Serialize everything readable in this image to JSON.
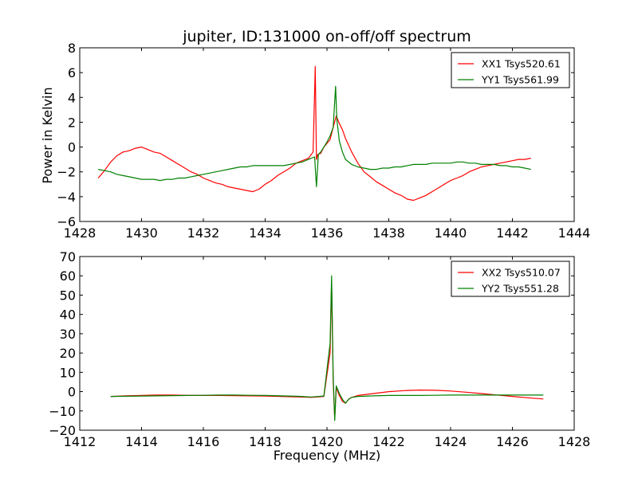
{
  "figure": {
    "title": "jupiter, ID:131000 on-off/off spectrum",
    "ylabel": "Power in Kelvin",
    "xlabel": "Frequency (MHz)"
  },
  "chart_data": [
    {
      "type": "line",
      "title": "jupiter, ID:131000 on-off/off spectrum",
      "xlabel": "",
      "ylabel": "Power in Kelvin",
      "xlim": [
        1428,
        1444
      ],
      "ylim": [
        -6,
        8
      ],
      "xticks": [
        1428,
        1430,
        1432,
        1434,
        1436,
        1438,
        1440,
        1442,
        1444
      ],
      "yticks": [
        -6,
        -4,
        -2,
        0,
        2,
        4,
        6,
        8
      ],
      "grid": false,
      "legend_position": "top-right",
      "series": [
        {
          "name": "XX1 Tsys520.61",
          "color": "#ff0000",
          "x": [
            1428.6,
            1428.8,
            1429.0,
            1429.2,
            1429.4,
            1429.6,
            1429.8,
            1430.0,
            1430.2,
            1430.4,
            1430.6,
            1430.8,
            1431.0,
            1431.2,
            1431.4,
            1431.6,
            1431.8,
            1432.0,
            1432.2,
            1432.4,
            1432.6,
            1432.8,
            1433.0,
            1433.2,
            1433.4,
            1433.6,
            1433.8,
            1434.0,
            1434.2,
            1434.4,
            1434.6,
            1434.8,
            1435.0,
            1435.2,
            1435.4,
            1435.55,
            1435.62,
            1435.66,
            1435.7,
            1435.8,
            1435.9,
            1436.0,
            1436.1,
            1436.2,
            1436.3,
            1436.4,
            1436.5,
            1436.6,
            1436.8,
            1437.0,
            1437.2,
            1437.4,
            1437.6,
            1437.8,
            1438.0,
            1438.2,
            1438.4,
            1438.6,
            1438.8,
            1439.0,
            1439.2,
            1439.4,
            1439.6,
            1439.8,
            1440.0,
            1440.2,
            1440.4,
            1440.6,
            1440.8,
            1441.0,
            1441.2,
            1441.4,
            1441.6,
            1441.8,
            1442.0,
            1442.2,
            1442.4,
            1442.6
          ],
          "y": [
            -2.5,
            -1.9,
            -1.2,
            -0.7,
            -0.4,
            -0.3,
            -0.1,
            0.0,
            -0.2,
            -0.4,
            -0.5,
            -0.8,
            -1.1,
            -1.4,
            -1.7,
            -2.0,
            -2.2,
            -2.5,
            -2.7,
            -2.9,
            -3.0,
            -3.2,
            -3.3,
            -3.4,
            -3.5,
            -3.6,
            -3.4,
            -3.0,
            -2.7,
            -2.3,
            -2.0,
            -1.7,
            -1.3,
            -1.1,
            -0.9,
            -0.4,
            6.5,
            -1.0,
            -0.6,
            -0.5,
            0.0,
            0.3,
            0.6,
            1.6,
            2.5,
            1.9,
            1.4,
            0.7,
            -0.4,
            -1.3,
            -2.0,
            -2.4,
            -2.8,
            -3.1,
            -3.4,
            -3.7,
            -3.9,
            -4.2,
            -4.3,
            -4.1,
            -3.9,
            -3.6,
            -3.3,
            -3.0,
            -2.7,
            -2.5,
            -2.3,
            -2.0,
            -1.8,
            -1.6,
            -1.5,
            -1.4,
            -1.3,
            -1.2,
            -1.1,
            -1.0,
            -1.0,
            -0.9
          ]
        },
        {
          "name": "YY1 Tsys561.99",
          "color": "#008000",
          "x": [
            1428.6,
            1428.8,
            1429.0,
            1429.2,
            1429.4,
            1429.6,
            1429.8,
            1430.0,
            1430.2,
            1430.4,
            1430.6,
            1430.8,
            1431.0,
            1431.2,
            1431.4,
            1431.6,
            1431.8,
            1432.0,
            1432.2,
            1432.4,
            1432.6,
            1432.8,
            1433.0,
            1433.2,
            1433.4,
            1433.6,
            1433.8,
            1434.0,
            1434.2,
            1434.4,
            1434.6,
            1434.8,
            1435.0,
            1435.2,
            1435.4,
            1435.6,
            1435.66,
            1435.72,
            1435.8,
            1435.9,
            1436.0,
            1436.1,
            1436.2,
            1436.28,
            1436.32,
            1436.4,
            1436.5,
            1436.6,
            1436.8,
            1437.0,
            1437.2,
            1437.4,
            1437.6,
            1437.8,
            1438.0,
            1438.2,
            1438.4,
            1438.6,
            1438.8,
            1439.0,
            1439.2,
            1439.4,
            1439.6,
            1439.8,
            1440.0,
            1440.2,
            1440.4,
            1440.6,
            1440.8,
            1441.0,
            1441.2,
            1441.4,
            1441.6,
            1441.8,
            1442.0,
            1442.2,
            1442.4,
            1442.6
          ],
          "y": [
            -1.8,
            -1.9,
            -2.0,
            -2.2,
            -2.3,
            -2.4,
            -2.5,
            -2.6,
            -2.6,
            -2.6,
            -2.7,
            -2.6,
            -2.6,
            -2.5,
            -2.5,
            -2.4,
            -2.3,
            -2.2,
            -2.1,
            -2.0,
            -1.9,
            -1.8,
            -1.7,
            -1.6,
            -1.6,
            -1.5,
            -1.5,
            -1.5,
            -1.5,
            -1.5,
            -1.5,
            -1.4,
            -1.3,
            -1.2,
            -1.0,
            -0.8,
            -3.2,
            -0.6,
            -0.4,
            0.0,
            0.4,
            0.9,
            1.6,
            4.9,
            2.2,
            0.5,
            -0.4,
            -1.0,
            -1.4,
            -1.6,
            -1.7,
            -1.8,
            -1.8,
            -1.7,
            -1.7,
            -1.6,
            -1.6,
            -1.5,
            -1.4,
            -1.4,
            -1.4,
            -1.3,
            -1.3,
            -1.3,
            -1.3,
            -1.2,
            -1.2,
            -1.3,
            -1.3,
            -1.4,
            -1.4,
            -1.4,
            -1.5,
            -1.5,
            -1.6,
            -1.6,
            -1.7,
            -1.8
          ]
        }
      ]
    },
    {
      "type": "line",
      "title": "",
      "xlabel": "Frequency (MHz)",
      "ylabel": "",
      "xlim": [
        1412,
        1428
      ],
      "ylim": [
        -20,
        70
      ],
      "xticks": [
        1412,
        1414,
        1416,
        1418,
        1420,
        1422,
        1424,
        1426,
        1428
      ],
      "yticks": [
        -20,
        -10,
        0,
        10,
        20,
        30,
        40,
        50,
        60,
        70
      ],
      "grid": false,
      "legend_position": "top-right",
      "series": [
        {
          "name": "XX2 Tsys510.07",
          "color": "#ff0000",
          "x": [
            1413.0,
            1413.5,
            1414.0,
            1414.5,
            1415.0,
            1415.5,
            1416.0,
            1416.5,
            1417.0,
            1417.5,
            1418.0,
            1418.5,
            1419.0,
            1419.5,
            1419.9,
            1420.1,
            1420.15,
            1420.2,
            1420.25,
            1420.3,
            1420.4,
            1420.5,
            1420.6,
            1420.7,
            1420.8,
            1421.0,
            1421.5,
            1422.0,
            1422.5,
            1423.0,
            1423.5,
            1424.0,
            1424.5,
            1425.0,
            1425.5,
            1426.0,
            1426.5,
            1427.0
          ],
          "y": [
            -2.5,
            -2.2,
            -2.0,
            -1.8,
            -1.8,
            -1.9,
            -2.0,
            -2.0,
            -2.1,
            -2.2,
            -2.3,
            -2.5,
            -2.7,
            -3.0,
            -2.5,
            20.0,
            57.0,
            5.0,
            -14.0,
            2.0,
            -2.0,
            -5.0,
            -6.0,
            -4.0,
            -3.0,
            -2.0,
            -1.0,
            0.0,
            0.5,
            0.8,
            0.7,
            0.3,
            -0.3,
            -1.0,
            -1.8,
            -2.5,
            -3.2,
            -3.8
          ]
        },
        {
          "name": "YY2 Tsys551.28",
          "color": "#008000",
          "x": [
            1413.0,
            1413.5,
            1414.0,
            1414.5,
            1415.0,
            1415.5,
            1416.0,
            1416.5,
            1417.0,
            1417.5,
            1418.0,
            1418.5,
            1419.0,
            1419.5,
            1419.9,
            1420.1,
            1420.15,
            1420.2,
            1420.25,
            1420.3,
            1420.4,
            1420.5,
            1420.6,
            1420.7,
            1420.8,
            1421.0,
            1421.5,
            1422.0,
            1422.5,
            1423.0,
            1423.5,
            1424.0,
            1424.5,
            1425.0,
            1425.5,
            1426.0,
            1426.5,
            1427.0
          ],
          "y": [
            -2.5,
            -2.4,
            -2.3,
            -2.2,
            -2.1,
            -2.0,
            -1.9,
            -1.8,
            -1.8,
            -1.9,
            -2.0,
            -2.2,
            -2.4,
            -2.8,
            -2.3,
            25.0,
            60.0,
            8.0,
            -15.0,
            3.0,
            -1.0,
            -4.0,
            -6.0,
            -4.0,
            -3.0,
            -2.5,
            -2.2,
            -2.0,
            -2.0,
            -2.0,
            -1.9,
            -1.8,
            -1.8,
            -1.8,
            -1.8,
            -1.8,
            -1.8,
            -1.8
          ]
        }
      ]
    }
  ]
}
